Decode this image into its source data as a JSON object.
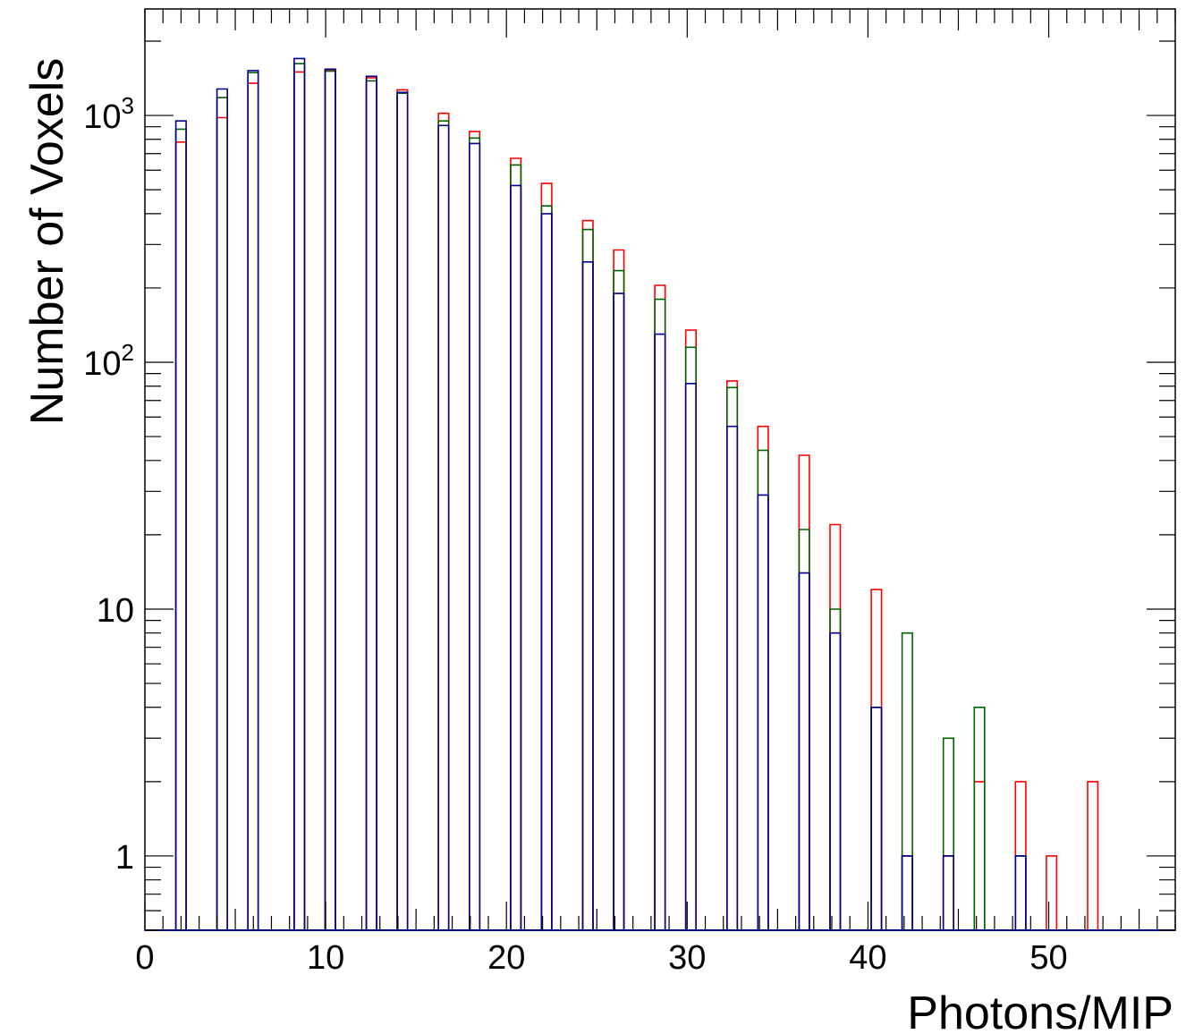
{
  "chart_data": {
    "type": "bar",
    "subtype": "overlaid step histogram",
    "xlabel": "Photons/MIP",
    "ylabel": "Number of Voxels",
    "xlim": [
      0,
      57
    ],
    "ylim": [
      0.5,
      2700
    ],
    "y_scale": "log",
    "grid": false,
    "legend": "none",
    "x_ticks": [
      "0",
      "10",
      "20",
      "30",
      "40",
      "50"
    ],
    "y_ticks": [
      {
        "value": 1,
        "base": "1",
        "exp": ""
      },
      {
        "value": 10,
        "base": "10",
        "exp": ""
      },
      {
        "value": 100,
        "base": "10",
        "exp": "2"
      },
      {
        "value": 1000,
        "base": "10",
        "exp": "3"
      }
    ],
    "bin_width": 0.57,
    "series": [
      {
        "color": "#ff0000",
        "bins": [
          [
            1.71,
            780
          ],
          [
            3.99,
            980
          ],
          [
            5.7,
            1350
          ],
          [
            8.26,
            1500
          ],
          [
            9.97,
            1530
          ],
          [
            12.25,
            1420
          ],
          [
            13.96,
            1270
          ],
          [
            16.24,
            1020
          ],
          [
            17.95,
            860
          ],
          [
            20.23,
            670
          ],
          [
            21.94,
            530
          ],
          [
            24.22,
            375
          ],
          [
            25.93,
            285
          ],
          [
            28.21,
            205
          ],
          [
            29.92,
            135
          ],
          [
            32.2,
            84
          ],
          [
            33.91,
            55
          ],
          [
            36.19,
            42
          ],
          [
            37.9,
            22
          ],
          [
            40.18,
            12
          ],
          [
            41.89,
            1
          ],
          [
            44.17,
            1
          ],
          [
            45.88,
            2
          ],
          [
            48.16,
            2
          ],
          [
            49.87,
            1
          ],
          [
            52.15,
            2
          ]
        ]
      },
      {
        "color": "#006400",
        "bins": [
          [
            1.71,
            880
          ],
          [
            3.99,
            1180
          ],
          [
            5.7,
            1490
          ],
          [
            8.26,
            1620
          ],
          [
            9.97,
            1510
          ],
          [
            12.25,
            1380
          ],
          [
            13.96,
            1230
          ],
          [
            16.24,
            950
          ],
          [
            17.95,
            810
          ],
          [
            20.23,
            630
          ],
          [
            21.94,
            430
          ],
          [
            24.22,
            345
          ],
          [
            25.93,
            235
          ],
          [
            28.21,
            180
          ],
          [
            29.92,
            115
          ],
          [
            32.2,
            79
          ],
          [
            33.91,
            44
          ],
          [
            36.19,
            21
          ],
          [
            37.9,
            10
          ],
          [
            40.18,
            4
          ],
          [
            41.89,
            8
          ],
          [
            44.17,
            3
          ],
          [
            45.88,
            4
          ],
          [
            48.16,
            1
          ]
        ]
      },
      {
        "color": "#00008b",
        "bins": [
          [
            1.71,
            950
          ],
          [
            3.99,
            1280
          ],
          [
            5.7,
            1520
          ],
          [
            8.26,
            1700
          ],
          [
            9.97,
            1540
          ],
          [
            12.25,
            1440
          ],
          [
            13.96,
            1240
          ],
          [
            16.24,
            910
          ],
          [
            17.95,
            770
          ],
          [
            20.23,
            520
          ],
          [
            21.94,
            400
          ],
          [
            24.22,
            255
          ],
          [
            25.93,
            190
          ],
          [
            28.21,
            130
          ],
          [
            29.92,
            82
          ],
          [
            32.2,
            55
          ],
          [
            33.91,
            29
          ],
          [
            36.19,
            14
          ],
          [
            37.9,
            8
          ],
          [
            40.18,
            4
          ],
          [
            41.89,
            1
          ],
          [
            44.17,
            1
          ],
          [
            48.16,
            1
          ]
        ]
      }
    ]
  }
}
